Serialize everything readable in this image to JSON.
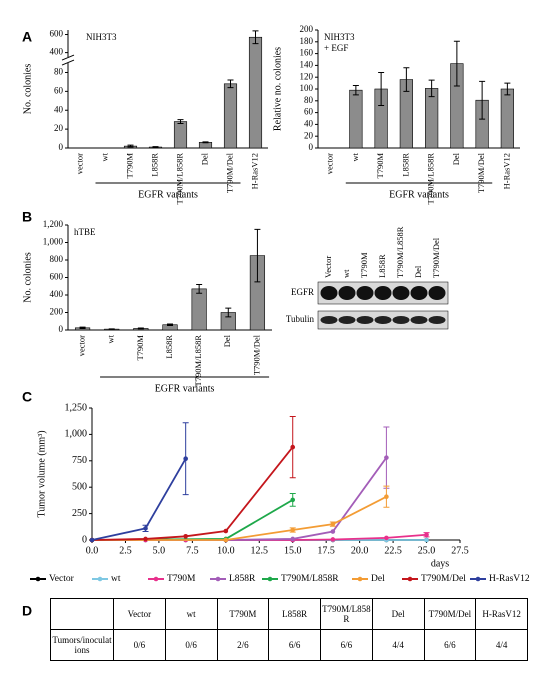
{
  "panels": [
    "A",
    "B",
    "C",
    "D"
  ],
  "chart_data": [
    {
      "type": "bar",
      "title": "NIH3T3",
      "ylabel": "No. colonies",
      "group_label": "EGFR variants",
      "categories": [
        "vector",
        "wt",
        "T790M",
        "L858R",
        "T790M/L858R",
        "Del",
        "T790M/Del",
        "H-RasV12"
      ],
      "values": [
        0,
        0,
        2,
        1,
        28,
        6,
        68,
        570
      ],
      "errors": [
        null,
        null,
        1,
        0.5,
        2,
        0.5,
        4,
        70
      ],
      "color": "#8c8c8c",
      "ylim": [
        0,
        650
      ],
      "ybreak": [
        90,
        350
      ],
      "yticks": [
        0,
        20,
        40,
        60,
        80,
        400,
        600
      ]
    },
    {
      "type": "bar",
      "title": "NIH3T3",
      "subtitle": "+ EGF",
      "ylabel": "Relative no. colonies",
      "group_label": "EGFR variants",
      "categories": [
        "vector",
        "wt",
        "T790M",
        "L858R",
        "T790M/L858R",
        "Del",
        "T790M/Del",
        "H-RasV12"
      ],
      "values": [
        0,
        98,
        100,
        116,
        101,
        143,
        81,
        100
      ],
      "errors": [
        null,
        8,
        28,
        20,
        14,
        38,
        32,
        10
      ],
      "color": "#8c8c8c",
      "ylim": [
        0,
        200
      ],
      "yticks": [
        0,
        20,
        40,
        60,
        80,
        100,
        120,
        140,
        160,
        180,
        200
      ]
    },
    {
      "type": "bar",
      "title": "hTBE",
      "ylabel": "No. colonies",
      "group_label": "EGFR variants",
      "categories": [
        "vector",
        "wt",
        "T790M",
        "L858R",
        "T790M/L858R",
        "Del",
        "T790M/Del"
      ],
      "values": [
        25,
        10,
        18,
        60,
        470,
        200,
        850
      ],
      "errors": [
        8,
        3,
        5,
        8,
        50,
        50,
        300
      ],
      "color": "#8c8c8c",
      "ylim": [
        0,
        1200
      ],
      "yticks": [
        0,
        200,
        400,
        600,
        800,
        {
          "value": 1000,
          "label": "1,000"
        },
        {
          "value": 1200,
          "label": "1,200"
        }
      ]
    },
    {
      "type": "line",
      "ylabel": "Tumor volume (mm³)",
      "xlabel": "days",
      "xlim": [
        0,
        27.5
      ],
      "xticks": [
        {
          "value": 0,
          "label": "0.0"
        },
        2.5,
        {
          "value": 5,
          "label": "5.0"
        },
        7.5,
        {
          "value": 10,
          "label": "10.0"
        },
        12.5,
        {
          "value": 15,
          "label": "15.0"
        },
        17.5,
        {
          "value": 20,
          "label": "20.0"
        },
        22.5,
        {
          "value": 25,
          "label": "25.0"
        },
        27.5
      ],
      "ylim": [
        0,
        1250
      ],
      "yticks": [
        0,
        250,
        500,
        750,
        {
          "value": 1000,
          "label": "1,000"
        },
        {
          "value": 1250,
          "label": "1,250"
        }
      ],
      "series": [
        {
          "name": "Vector",
          "color": "#000000",
          "x": [
            0,
            4,
            7,
            10,
            15,
            18,
            22,
            25
          ],
          "values": [
            0,
            0,
            0,
            0,
            0,
            0,
            0,
            0
          ],
          "errors": [
            null,
            null,
            null,
            null,
            null,
            null,
            null,
            null
          ]
        },
        {
          "name": "wt",
          "color": "#7ec8e3",
          "x": [
            0,
            4,
            7,
            10,
            15,
            18,
            22,
            25
          ],
          "values": [
            0,
            0,
            0,
            0,
            0,
            0,
            0,
            0
          ],
          "errors": [
            null,
            null,
            null,
            null,
            null,
            null,
            null,
            null
          ]
        },
        {
          "name": "T790M",
          "color": "#e8308c",
          "x": [
            0,
            4,
            7,
            10,
            15,
            18,
            22,
            25
          ],
          "values": [
            0,
            0,
            0,
            0,
            0,
            5,
            20,
            50
          ],
          "errors": [
            null,
            null,
            null,
            null,
            null,
            null,
            null,
            20
          ]
        },
        {
          "name": "L858R",
          "color": "#a35db8",
          "x": [
            0,
            10,
            15,
            18,
            22
          ],
          "values": [
            0,
            0,
            10,
            80,
            780
          ],
          "errors": [
            null,
            null,
            null,
            null,
            290
          ]
        },
        {
          "name": "T790M/L858R",
          "color": "#1ea84a",
          "x": [
            0,
            10,
            15
          ],
          "values": [
            0,
            10,
            380
          ],
          "errors": [
            null,
            null,
            60
          ]
        },
        {
          "name": "Del",
          "color": "#f39c34",
          "x": [
            0,
            10,
            15,
            18,
            22
          ],
          "values": [
            0,
            0,
            95,
            150,
            410
          ],
          "errors": [
            null,
            null,
            20,
            20,
            100
          ]
        },
        {
          "name": "T790M/Del",
          "color": "#c4161c",
          "x": [
            0,
            4,
            7,
            10,
            15
          ],
          "values": [
            0,
            10,
            35,
            85,
            880
          ],
          "errors": [
            null,
            null,
            null,
            null,
            290
          ]
        },
        {
          "name": "H-RasV12",
          "color": "#2e3f9e",
          "x": [
            0,
            4,
            7
          ],
          "values": [
            0,
            110,
            770
          ],
          "errors": [
            null,
            30,
            340
          ]
        }
      ]
    }
  ],
  "blot": {
    "columns": [
      "Vector",
      "wt",
      "T790M",
      "L858R",
      "T790M/L858R",
      "Del",
      "T790M/Del"
    ],
    "rows": [
      "EGFR",
      "Tubulin"
    ]
  },
  "table": {
    "header": [
      "Vector",
      "wt",
      "T790M",
      "L858R",
      "T790M/L858R",
      "Del",
      "T790M/Del",
      "H-RasV12"
    ],
    "rows": [
      [
        "Tumors/inoculations",
        "0/6",
        "0/6",
        "2/6",
        "6/6",
        "6/6",
        "4/4",
        "6/6",
        "4/4"
      ]
    ]
  }
}
